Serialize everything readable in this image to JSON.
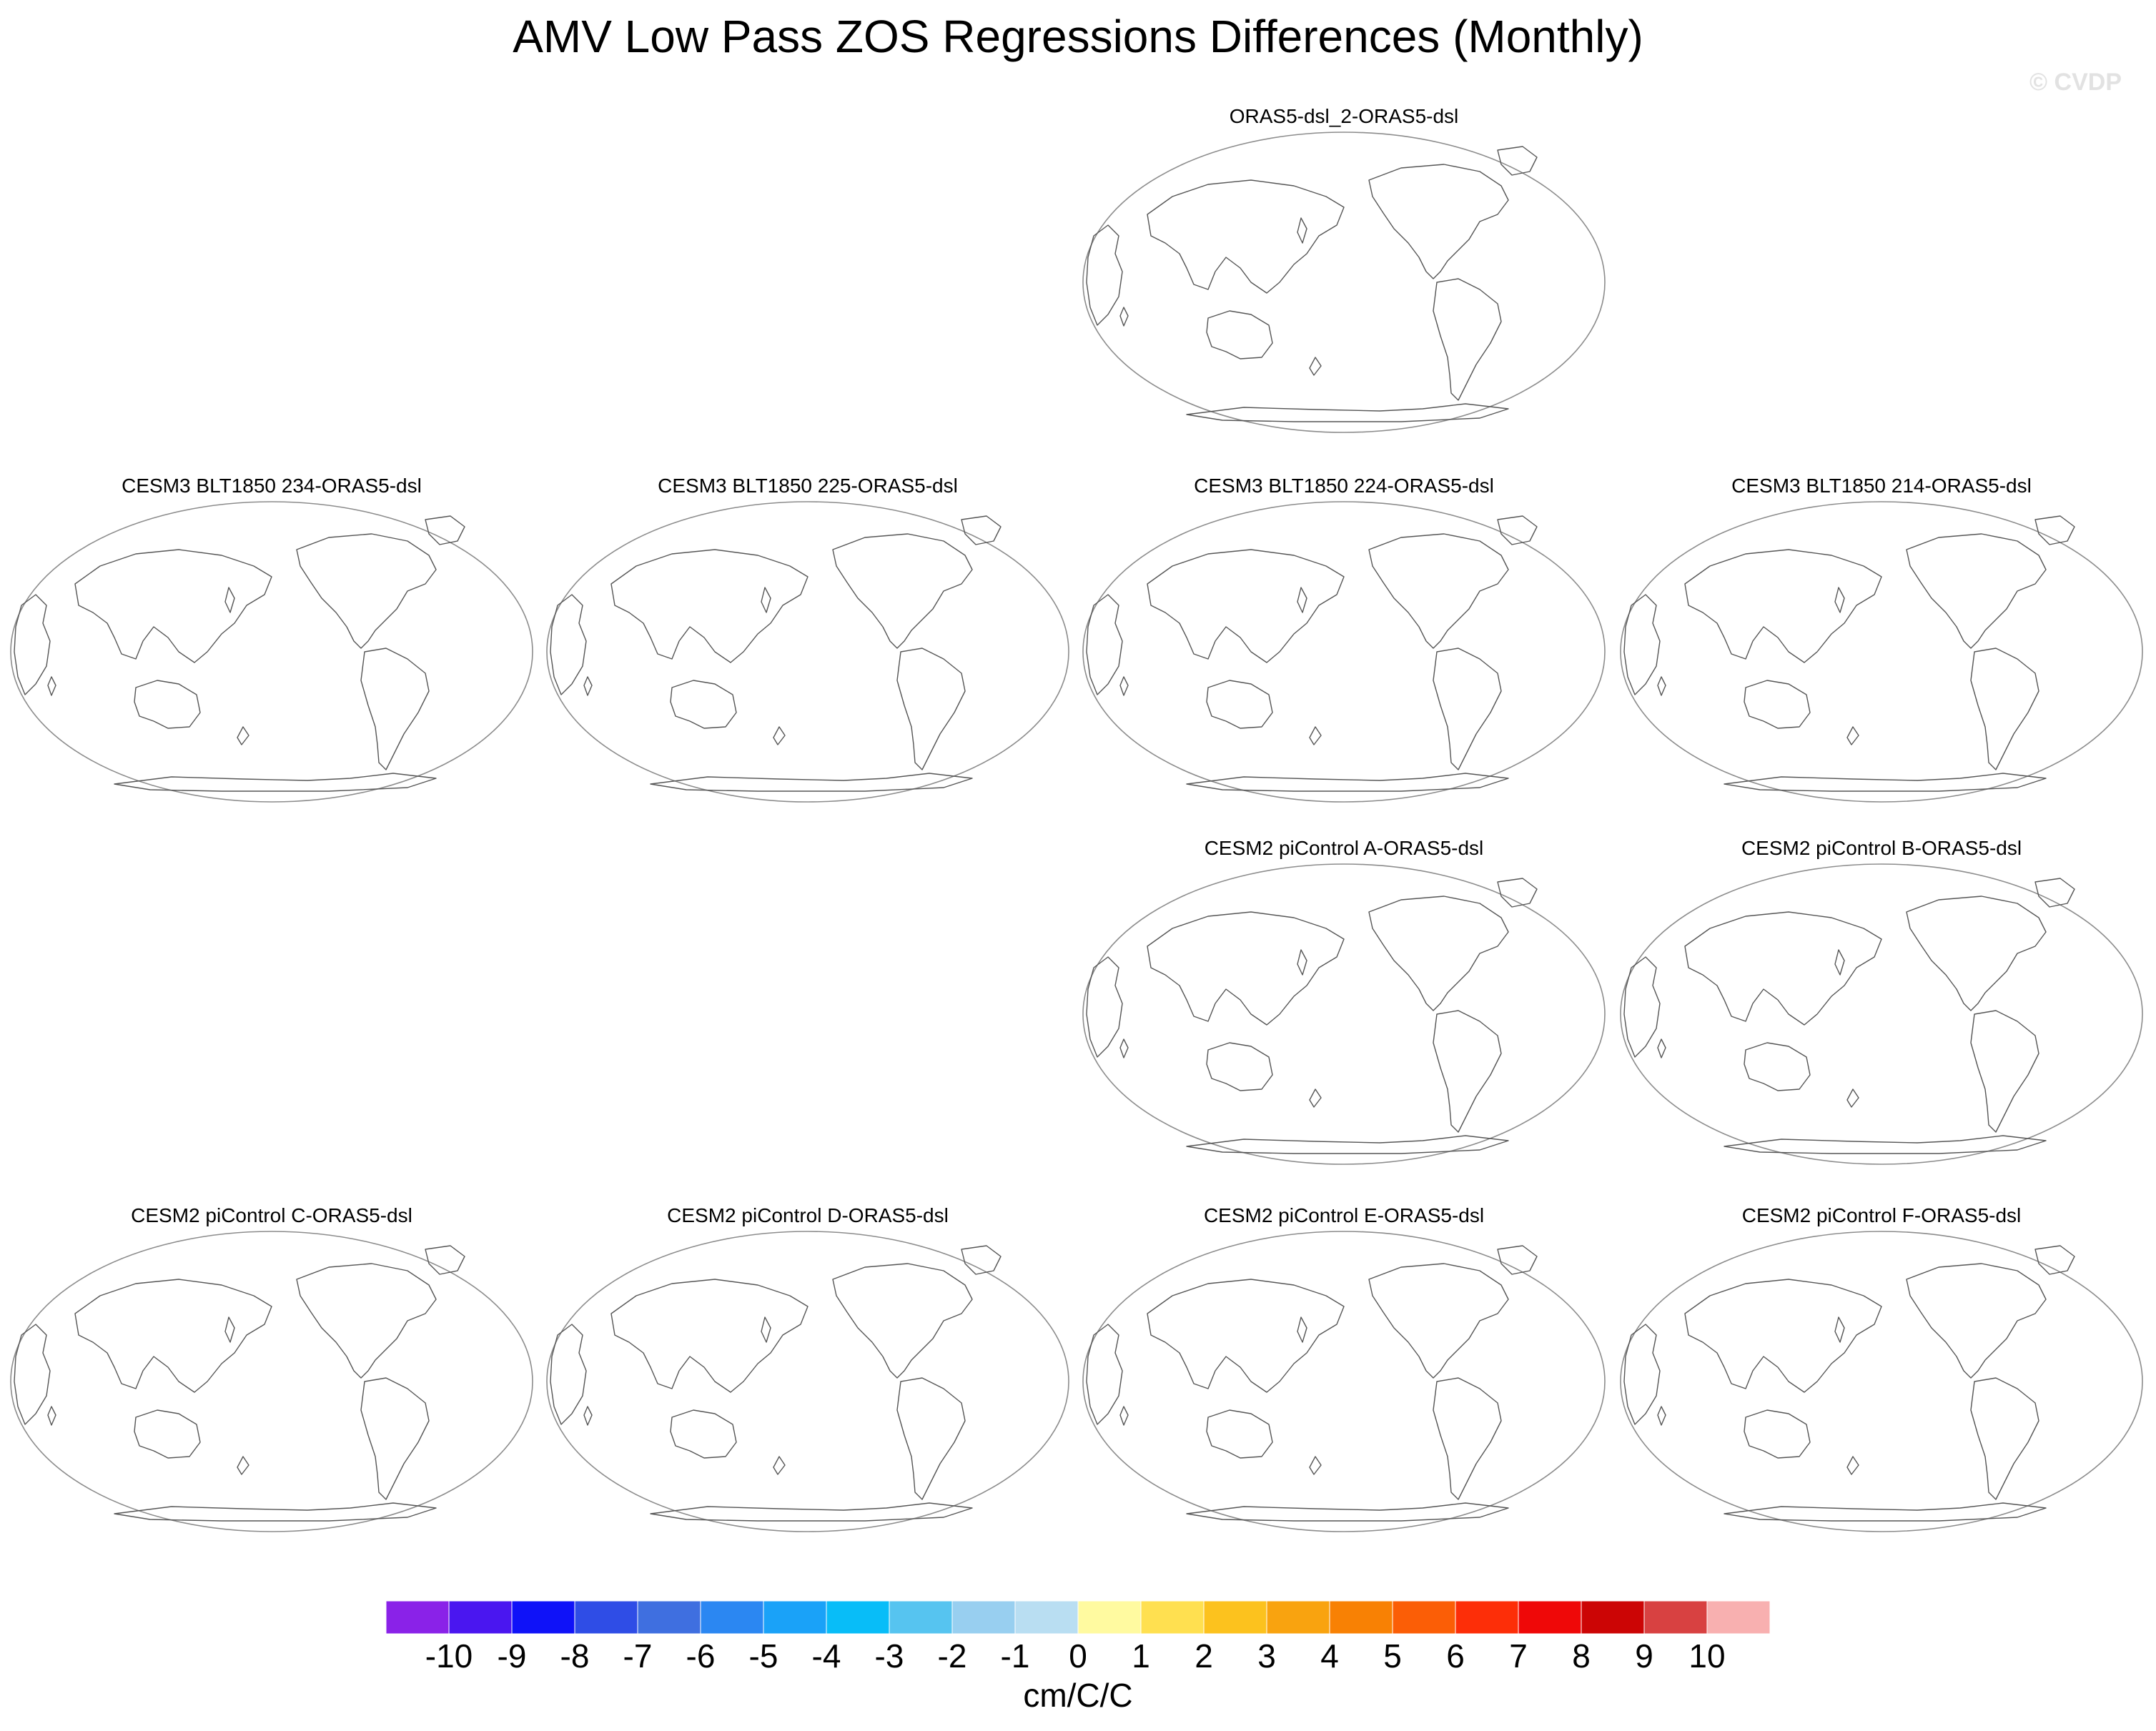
{
  "title": "AMV Low Pass ZOS Regressions Differences (Monthly)",
  "watermark": "© CVDP",
  "panels": [
    {
      "title": "ORAS5-dsl_2-ORAS5-dsl"
    },
    {
      "title": "CESM3 BLT1850 234-ORAS5-dsl"
    },
    {
      "title": "CESM3 BLT1850 225-ORAS5-dsl"
    },
    {
      "title": "CESM3 BLT1850 224-ORAS5-dsl"
    },
    {
      "title": "CESM3 BLT1850 214-ORAS5-dsl"
    },
    {
      "title": "CESM2 piControl A-ORAS5-dsl"
    },
    {
      "title": "CESM2 piControl B-ORAS5-dsl"
    },
    {
      "title": "CESM2 piControl C-ORAS5-dsl"
    },
    {
      "title": "CESM2 piControl D-ORAS5-dsl"
    },
    {
      "title": "CESM2 piControl E-ORAS5-dsl"
    },
    {
      "title": "CESM2 piControl F-ORAS5-dsl"
    }
  ],
  "colorbar": {
    "units": "cm/C/C",
    "labels": [
      "-10",
      "-9",
      "-8",
      "-7",
      "-6",
      "-5",
      "-4",
      "-3",
      "-2",
      "-1",
      "0",
      "1",
      "2",
      "3",
      "4",
      "5",
      "6",
      "7",
      "8",
      "9",
      "10"
    ],
    "colors": [
      "#8a22e8",
      "#4a16f0",
      "#0f12f8",
      "#2f4de6",
      "#3f6fe0",
      "#2b87f2",
      "#1aa2f8",
      "#08bdf8",
      "#56c4f0",
      "#98cff0",
      "#b9def2",
      "#fffaa0",
      "#ffe050",
      "#fcc21e",
      "#f9a30f",
      "#f88104",
      "#fb5e06",
      "#fd2e08",
      "#ef0808",
      "#cc0505",
      "#d84141",
      "#f8b0b0"
    ]
  }
}
